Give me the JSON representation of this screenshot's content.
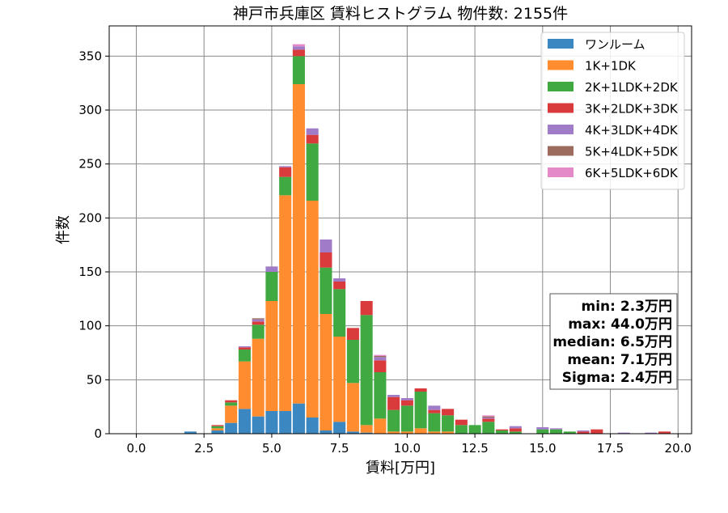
{
  "chart_data": {
    "type": "bar",
    "stacked": true,
    "title": "神戸市兵庫区 賃料ヒストグラム  物件数: 2155件",
    "xlabel": "賃料[万円]",
    "ylabel": "件数",
    "xlim": [
      -1.0,
      20.5
    ],
    "ylim": [
      0,
      378
    ],
    "bin_width": 0.5,
    "grid": true,
    "legend_position": "top-right",
    "x_ticks": [
      "0.0",
      "2.5",
      "5.0",
      "7.5",
      "10.0",
      "12.5",
      "15.0",
      "17.5",
      "20.0"
    ],
    "y_ticks": [
      "0",
      "50",
      "100",
      "150",
      "200",
      "250",
      "300",
      "350"
    ],
    "bins": [
      2.0,
      3.0,
      3.5,
      4.0,
      4.5,
      5.0,
      5.5,
      6.0,
      6.5,
      7.0,
      7.5,
      8.0,
      8.5,
      9.0,
      9.5,
      10.0,
      10.5,
      11.0,
      11.5,
      12.0,
      12.5,
      13.0,
      13.5,
      14.0,
      15.0,
      15.5,
      16.0,
      16.5,
      17.0,
      18.0,
      19.0,
      19.5
    ],
    "series": [
      {
        "name": "ワンルーム",
        "color": "#3a87c2",
        "values": [
          2,
          3,
          10,
          23,
          16,
          21,
          21,
          28,
          15,
          3,
          11,
          2,
          1,
          0,
          0,
          0,
          0,
          0,
          0,
          0,
          0,
          0,
          0,
          0,
          0,
          0,
          0,
          0,
          0,
          0,
          0,
          0
        ]
      },
      {
        "name": "1K+1DK",
        "color": "#ff8c2e",
        "values": [
          0,
          2,
          16,
          44,
          72,
          102,
          200,
          296,
          201,
          108,
          79,
          45,
          7,
          14,
          2,
          2,
          5,
          2,
          2,
          0,
          0,
          0,
          0,
          0,
          0,
          0,
          0,
          0,
          0,
          0,
          0,
          0
        ]
      },
      {
        "name": "2K+1LDK+2DK",
        "color": "#41a942",
        "values": [
          0,
          2,
          3,
          11,
          13,
          27,
          17,
          26,
          53,
          43,
          44,
          40,
          102,
          43,
          20,
          24,
          34,
          17,
          15,
          8,
          8,
          11,
          3,
          2,
          4,
          4,
          2,
          0,
          0,
          0,
          0,
          0
        ]
      },
      {
        "name": "3K+2LDK+3DK",
        "color": "#d93b3c",
        "values": [
          0,
          1,
          2,
          2,
          3,
          0,
          9,
          6,
          8,
          14,
          7,
          11,
          13,
          11,
          12,
          5,
          3,
          3,
          6,
          5,
          0,
          3,
          1,
          3,
          0,
          0,
          0,
          2,
          4,
          0,
          0,
          2
        ]
      },
      {
        "name": "4K+3LDK+4DK",
        "color": "#a07cc8",
        "values": [
          0,
          0,
          0,
          1,
          2,
          5,
          1,
          3,
          6,
          12,
          3,
          0,
          0,
          3,
          2,
          2,
          0,
          4,
          0,
          0,
          0,
          1,
          0,
          2,
          2,
          1,
          0,
          1,
          0,
          1,
          1,
          0
        ]
      },
      {
        "name": "5K+4LDK+5DK",
        "color": "#9c6b5e",
        "values": [
          0,
          0,
          0,
          0,
          1,
          0,
          0,
          0,
          0,
          0,
          0,
          0,
          0,
          1,
          0,
          0,
          0,
          0,
          0,
          0,
          0,
          1,
          0,
          0,
          0,
          0,
          0,
          0,
          0,
          0,
          0,
          0
        ]
      },
      {
        "name": "6K+5LDK+6DK",
        "color": "#e58ac9",
        "values": [
          0,
          0,
          0,
          0,
          0,
          0,
          0,
          2,
          0,
          0,
          0,
          0,
          0,
          1,
          0,
          0,
          0,
          0,
          0,
          0,
          0,
          1,
          0,
          0,
          0,
          0,
          0,
          0,
          0,
          0,
          0,
          0
        ]
      }
    ],
    "stats": [
      "min: 2.3万円",
      "max: 44.0万円",
      "median: 6.5万円",
      "mean: 7.1万円",
      "Sigma: 2.4万円"
    ]
  }
}
